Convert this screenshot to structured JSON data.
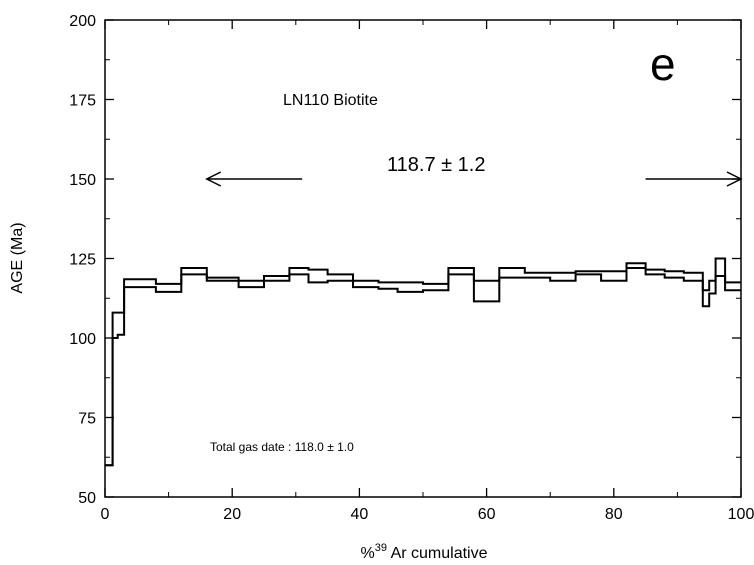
{
  "chart_data": {
    "type": "line",
    "title": "",
    "xlabel_prefix": "%",
    "xlabel_sup": "39",
    "xlabel_rest": " Ar cumulative",
    "ylabel": "AGE (Ma)",
    "xlim": [
      0,
      100
    ],
    "ylim": [
      50,
      200
    ],
    "x_ticks": [
      0,
      20,
      40,
      60,
      80,
      100
    ],
    "y_ticks": [
      50,
      75,
      100,
      125,
      150,
      175,
      200
    ],
    "grid": false,
    "annotations": {
      "sample": "LN110 Biotite",
      "plateau": "118.7 ± 1.2",
      "total_gas": "Total gas date : 118.0 ± 1.0",
      "panel": "e"
    },
    "plateau_arrow": {
      "y": 150,
      "left_from_x": 31,
      "left_to_x": 16,
      "right_from_x": 85,
      "right_to_x": 100
    },
    "series": [
      {
        "values": [
          {
            "x0": 0,
            "x1": 1.2,
            "y": 60
          },
          {
            "x0": 1.2,
            "x1": 2,
            "y": 108
          },
          {
            "x0": 2,
            "x1": 3,
            "y": 108
          },
          {
            "x0": 3,
            "x1": 8,
            "y": 118.5
          },
          {
            "x0": 8,
            "x1": 12,
            "y": 117
          },
          {
            "x0": 12,
            "x1": 16,
            "y": 122
          },
          {
            "x0": 16,
            "x1": 21,
            "y": 119
          },
          {
            "x0": 21,
            "x1": 25,
            "y": 118
          },
          {
            "x0": 25,
            "x1": 29,
            "y": 119.5
          },
          {
            "x0": 29,
            "x1": 32,
            "y": 122
          },
          {
            "x0": 32,
            "x1": 35,
            "y": 121.5
          },
          {
            "x0": 35,
            "x1": 39,
            "y": 120
          },
          {
            "x0": 39,
            "x1": 43,
            "y": 118
          },
          {
            "x0": 43,
            "x1": 46,
            "y": 117.5
          },
          {
            "x0": 46,
            "x1": 50,
            "y": 117.5
          },
          {
            "x0": 50,
            "x1": 54,
            "y": 117
          },
          {
            "x0": 54,
            "x1": 58,
            "y": 122
          },
          {
            "x0": 58,
            "x1": 62,
            "y": 118
          },
          {
            "x0": 62,
            "x1": 66,
            "y": 122
          },
          {
            "x0": 66,
            "x1": 70,
            "y": 120.5
          },
          {
            "x0": 70,
            "x1": 74,
            "y": 120.5
          },
          {
            "x0": 74,
            "x1": 78,
            "y": 121
          },
          {
            "x0": 78,
            "x1": 82,
            "y": 121
          },
          {
            "x0": 82,
            "x1": 85,
            "y": 123.5
          },
          {
            "x0": 85,
            "x1": 88,
            "y": 121.5
          },
          {
            "x0": 88,
            "x1": 91,
            "y": 121
          },
          {
            "x0": 91,
            "x1": 94,
            "y": 120.5
          },
          {
            "x0": 94,
            "x1": 95,
            "y": 115
          },
          {
            "x0": 95,
            "x1": 96,
            "y": 118
          },
          {
            "x0": 96,
            "x1": 97.5,
            "y": 125
          },
          {
            "x0": 97.5,
            "x1": 100,
            "y": 117.5
          }
        ]
      },
      {
        "values": [
          {
            "x0": 0,
            "x1": 1.2,
            "y": 60
          },
          {
            "x0": 1.2,
            "x1": 2,
            "y": 100
          },
          {
            "x0": 2,
            "x1": 3,
            "y": 101
          },
          {
            "x0": 3,
            "x1": 8,
            "y": 116
          },
          {
            "x0": 8,
            "x1": 12,
            "y": 114.5
          },
          {
            "x0": 12,
            "x1": 16,
            "y": 120
          },
          {
            "x0": 16,
            "x1": 21,
            "y": 118
          },
          {
            "x0": 21,
            "x1": 25,
            "y": 116
          },
          {
            "x0": 25,
            "x1": 29,
            "y": 118
          },
          {
            "x0": 29,
            "x1": 32,
            "y": 120
          },
          {
            "x0": 32,
            "x1": 35,
            "y": 117.5
          },
          {
            "x0": 35,
            "x1": 39,
            "y": 118
          },
          {
            "x0": 39,
            "x1": 43,
            "y": 116
          },
          {
            "x0": 43,
            "x1": 46,
            "y": 115.5
          },
          {
            "x0": 46,
            "x1": 50,
            "y": 114.5
          },
          {
            "x0": 50,
            "x1": 54,
            "y": 115
          },
          {
            "x0": 54,
            "x1": 58,
            "y": 120
          },
          {
            "x0": 58,
            "x1": 62,
            "y": 111.5
          },
          {
            "x0": 62,
            "x1": 66,
            "y": 119
          },
          {
            "x0": 66,
            "x1": 70,
            "y": 119
          },
          {
            "x0": 70,
            "x1": 74,
            "y": 118
          },
          {
            "x0": 74,
            "x1": 78,
            "y": 120
          },
          {
            "x0": 78,
            "x1": 82,
            "y": 118
          },
          {
            "x0": 82,
            "x1": 85,
            "y": 122
          },
          {
            "x0": 85,
            "x1": 88,
            "y": 120
          },
          {
            "x0": 88,
            "x1": 91,
            "y": 119
          },
          {
            "x0": 91,
            "x1": 94,
            "y": 118
          },
          {
            "x0": 94,
            "x1": 95,
            "y": 110
          },
          {
            "x0": 95,
            "x1": 96,
            "y": 114
          },
          {
            "x0": 96,
            "x1": 97.5,
            "y": 119.5
          },
          {
            "x0": 97.5,
            "x1": 100,
            "y": 115
          }
        ]
      }
    ]
  }
}
